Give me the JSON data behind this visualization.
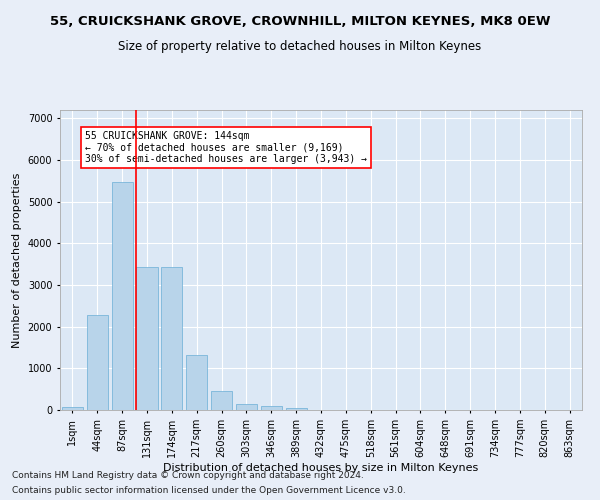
{
  "title": "55, CRUICKSHANK GROVE, CROWNHILL, MILTON KEYNES, MK8 0EW",
  "subtitle": "Size of property relative to detached houses in Milton Keynes",
  "xlabel": "Distribution of detached houses by size in Milton Keynes",
  "ylabel": "Number of detached properties",
  "footer_line1": "Contains HM Land Registry data © Crown copyright and database right 2024.",
  "footer_line2": "Contains public sector information licensed under the Open Government Licence v3.0.",
  "categories": [
    "1sqm",
    "44sqm",
    "87sqm",
    "131sqm",
    "174sqm",
    "217sqm",
    "260sqm",
    "303sqm",
    "346sqm",
    "389sqm",
    "432sqm",
    "475sqm",
    "518sqm",
    "561sqm",
    "604sqm",
    "648sqm",
    "691sqm",
    "734sqm",
    "777sqm",
    "820sqm",
    "863sqm"
  ],
  "values": [
    80,
    2280,
    5470,
    3430,
    3430,
    1310,
    460,
    155,
    85,
    50,
    0,
    0,
    0,
    0,
    0,
    0,
    0,
    0,
    0,
    0,
    0
  ],
  "bar_color": "#b8d4ea",
  "bar_edge_color": "#6aaed6",
  "vline_x_index": 3,
  "vline_color": "red",
  "annotation_text": "55 CRUICKSHANK GROVE: 144sqm\n← 70% of detached houses are smaller (9,169)\n30% of semi-detached houses are larger (3,943) →",
  "annotation_box_color": "white",
  "annotation_box_edge_color": "red",
  "ylim": [
    0,
    7200
  ],
  "yticks": [
    0,
    1000,
    2000,
    3000,
    4000,
    5000,
    6000,
    7000
  ],
  "bg_color": "#e8eef8",
  "plot_bg_color": "#dce8f5",
  "grid_color": "#ffffff",
  "title_fontsize": 9.5,
  "subtitle_fontsize": 8.5,
  "xlabel_fontsize": 8,
  "ylabel_fontsize": 8,
  "tick_fontsize": 7,
  "annotation_fontsize": 7,
  "footer_fontsize": 6.5
}
